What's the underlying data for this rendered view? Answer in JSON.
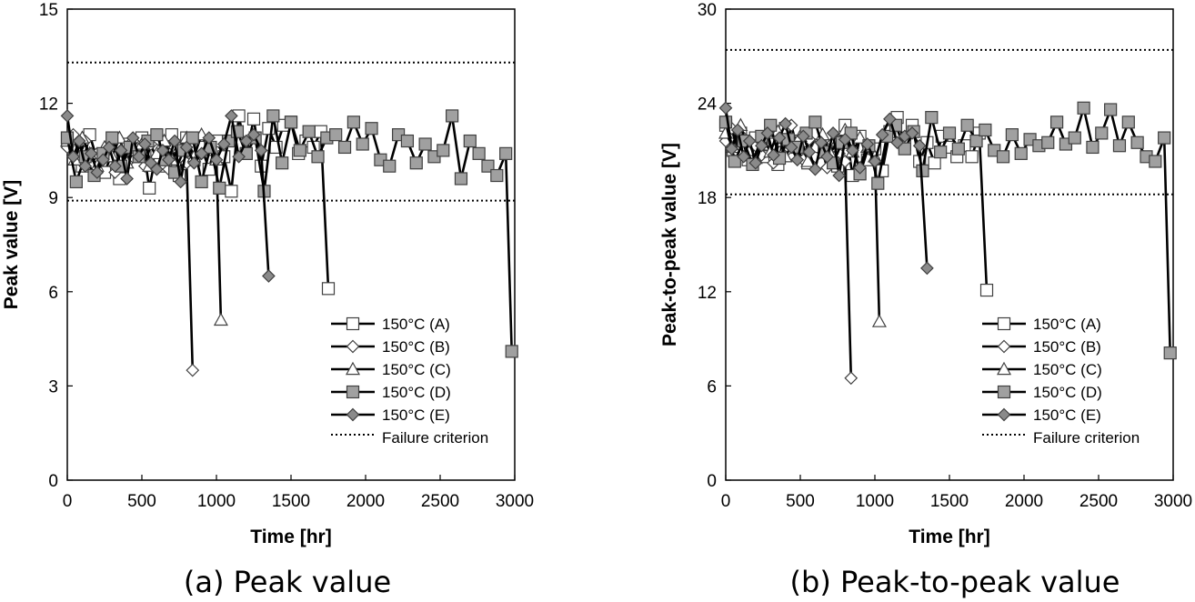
{
  "chart_data": [
    {
      "type": "line",
      "caption": "(a) Peak value",
      "xlabel": "Time [hr]",
      "ylabel": "Peak value [V]",
      "xlim": [
        0,
        3000
      ],
      "ylim": [
        0,
        15
      ],
      "xticks": [
        0,
        500,
        1000,
        1500,
        2000,
        2500,
        3000
      ],
      "yticks": [
        0,
        3,
        6,
        9,
        12,
        15
      ],
      "grid": false,
      "legend_position": "bottom-right",
      "failure_criterion": [
        13.3,
        8.9
      ],
      "legend": [
        "150°C (A)",
        "150°C (B)",
        "150°C (C)",
        "150°C (D)",
        "150°C (E)",
        "Failure criterion"
      ],
      "series": [
        {
          "name": "150°C (A)",
          "marker": "square-open",
          "x": [
            0,
            50,
            100,
            150,
            200,
            250,
            300,
            350,
            400,
            450,
            500,
            550,
            600,
            650,
            700,
            750,
            800,
            850,
            900,
            950,
            1000,
            1050,
            1100,
            1150,
            1200,
            1250,
            1300,
            1350,
            1400,
            1450,
            1500,
            1550,
            1600,
            1650,
            1700,
            1750
          ],
          "y": [
            10.9,
            10.5,
            10.0,
            11.0,
            10.2,
            9.8,
            10.4,
            9.6,
            10.7,
            10.3,
            10.9,
            9.3,
            10.5,
            10.0,
            11.0,
            9.7,
            10.9,
            10.2,
            10.6,
            9.9,
            10.8,
            10.3,
            9.2,
            11.6,
            10.4,
            11.5,
            10.0,
            11.2,
            10.6,
            11.3,
            11.4,
            10.4,
            10.8,
            10.6,
            11.1,
            6.1
          ]
        },
        {
          "name": "150°C (B)",
          "marker": "diamond-open",
          "x": [
            0,
            40,
            80,
            120,
            160,
            200,
            240,
            280,
            320,
            360,
            400,
            440,
            480,
            520,
            560,
            600,
            640,
            680,
            720,
            760,
            800,
            840
          ],
          "y": [
            10.6,
            11.0,
            10.3,
            10.8,
            10.0,
            10.4,
            10.2,
            10.6,
            9.8,
            10.5,
            10.1,
            10.8,
            10.3,
            10.0,
            10.7,
            10.2,
            10.5,
            9.9,
            10.6,
            10.3,
            10.1,
            3.5
          ]
        },
        {
          "name": "150°C (C)",
          "marker": "triangle-open",
          "x": [
            0,
            50,
            100,
            150,
            200,
            250,
            300,
            350,
            400,
            450,
            500,
            550,
            600,
            650,
            700,
            750,
            800,
            850,
            900,
            950,
            1000,
            1030
          ],
          "y": [
            10.8,
            10.2,
            10.9,
            10.4,
            10.0,
            10.6,
            10.3,
            10.9,
            10.1,
            10.5,
            10.7,
            10.0,
            10.4,
            10.8,
            10.2,
            10.6,
            10.9,
            10.3,
            11.0,
            10.5,
            10.2,
            5.1
          ]
        },
        {
          "name": "150°C (D)",
          "marker": "square-filled",
          "x": [
            0,
            60,
            120,
            180,
            240,
            300,
            360,
            420,
            480,
            540,
            600,
            660,
            720,
            780,
            840,
            900,
            960,
            1020,
            1080,
            1140,
            1200,
            1260,
            1320,
            1380,
            1440,
            1500,
            1560,
            1620,
            1680,
            1740,
            1800,
            1860,
            1920,
            1980,
            2040,
            2100,
            2160,
            2220,
            2280,
            2340,
            2400,
            2460,
            2520,
            2580,
            2640,
            2700,
            2760,
            2820,
            2880,
            2940,
            2980
          ],
          "y": [
            10.9,
            9.5,
            10.3,
            9.7,
            10.4,
            10.9,
            10.0,
            10.6,
            10.3,
            10.8,
            11.0,
            10.2,
            9.8,
            10.5,
            10.9,
            9.5,
            10.6,
            9.3,
            10.8,
            11.1,
            10.4,
            10.9,
            9.2,
            11.6,
            10.1,
            11.4,
            10.5,
            11.1,
            10.3,
            10.9,
            11.0,
            10.6,
            11.4,
            10.7,
            11.2,
            10.2,
            10.0,
            11.0,
            10.8,
            10.1,
            10.7,
            10.3,
            10.5,
            11.6,
            9.6,
            10.8,
            10.4,
            10.0,
            9.7,
            10.4,
            4.1
          ]
        },
        {
          "name": "150°C (E)",
          "marker": "diamond-filled",
          "x": [
            0,
            40,
            80,
            120,
            160,
            200,
            240,
            280,
            320,
            360,
            400,
            440,
            480,
            520,
            560,
            600,
            640,
            680,
            720,
            760,
            800,
            850,
            900,
            950,
            1000,
            1050,
            1100,
            1150,
            1200,
            1250,
            1300,
            1350
          ],
          "y": [
            11.6,
            10.3,
            10.8,
            10.0,
            10.4,
            9.8,
            10.2,
            10.6,
            10.0,
            10.5,
            9.6,
            10.9,
            10.3,
            10.7,
            10.1,
            9.9,
            10.5,
            10.2,
            10.8,
            9.5,
            10.6,
            10.1,
            10.4,
            10.9,
            10.2,
            10.7,
            11.6,
            10.3,
            10.8,
            11.0,
            10.5,
            6.5
          ]
        }
      ]
    },
    {
      "type": "line",
      "caption": "(b) Peak-to-peak value",
      "xlabel": "Time [hr]",
      "ylabel": "Peak-to-peak value [V]",
      "xlim": [
        0,
        3000
      ],
      "ylim": [
        0,
        30
      ],
      "xticks": [
        0,
        500,
        1000,
        1500,
        2000,
        2500,
        3000
      ],
      "yticks": [
        0,
        6,
        12,
        18,
        24,
        30
      ],
      "grid": false,
      "legend_position": "bottom-right",
      "failure_criterion": [
        27.4,
        18.2
      ],
      "legend": [
        "150°C (A)",
        "150°C (B)",
        "150°C (C)",
        "150°C (D)",
        "150°C (E)",
        "Failure criterion"
      ],
      "series": [
        {
          "name": "150°C (A)",
          "marker": "square-open",
          "x": [
            0,
            50,
            100,
            150,
            200,
            250,
            300,
            350,
            400,
            450,
            500,
            550,
            600,
            650,
            700,
            750,
            800,
            850,
            900,
            950,
            1000,
            1050,
            1100,
            1150,
            1200,
            1250,
            1300,
            1350,
            1400,
            1450,
            1500,
            1550,
            1600,
            1650,
            1700,
            1750
          ],
          "y": [
            22.6,
            21.0,
            22.1,
            20.4,
            21.8,
            20.6,
            21.4,
            20.1,
            22.4,
            20.8,
            21.6,
            20.2,
            22.1,
            20.9,
            21.3,
            20.0,
            22.6,
            19.4,
            21.9,
            20.4,
            21.1,
            19.7,
            22.2,
            23.1,
            21.4,
            22.6,
            20.3,
            21.5,
            20.2,
            21.9,
            21.2,
            20.6,
            21.3,
            20.6,
            22.1,
            12.1
          ]
        },
        {
          "name": "150°C (B)",
          "marker": "diamond-open",
          "x": [
            0,
            40,
            80,
            120,
            160,
            200,
            240,
            280,
            320,
            360,
            400,
            440,
            480,
            520,
            560,
            600,
            640,
            680,
            720,
            760,
            800,
            840
          ],
          "y": [
            21.6,
            22.4,
            20.9,
            21.8,
            20.5,
            21.3,
            20.7,
            22.1,
            20.2,
            21.6,
            20.9,
            22.6,
            21.1,
            20.4,
            21.7,
            20.6,
            21.2,
            19.9,
            21.5,
            20.8,
            20.3,
            6.5
          ]
        },
        {
          "name": "150°C (C)",
          "marker": "triangle-open",
          "x": [
            0,
            50,
            100,
            150,
            200,
            250,
            300,
            350,
            400,
            450,
            500,
            550,
            600,
            650,
            700,
            750,
            800,
            850,
            900,
            950,
            1000,
            1030
          ],
          "y": [
            22.1,
            21.2,
            22.6,
            21.0,
            20.5,
            21.8,
            20.9,
            22.2,
            20.6,
            21.5,
            21.9,
            20.3,
            21.2,
            22.0,
            20.8,
            21.6,
            22.3,
            20.9,
            21.8,
            21.2,
            20.6,
            10.1
          ]
        },
        {
          "name": "150°C (D)",
          "marker": "square-filled",
          "x": [
            0,
            60,
            120,
            180,
            240,
            300,
            360,
            420,
            480,
            540,
            600,
            660,
            720,
            780,
            840,
            900,
            960,
            1020,
            1080,
            1140,
            1200,
            1260,
            1320,
            1380,
            1440,
            1500,
            1560,
            1620,
            1680,
            1740,
            1800,
            1860,
            1920,
            1980,
            2040,
            2100,
            2160,
            2220,
            2280,
            2340,
            2400,
            2460,
            2520,
            2580,
            2640,
            2700,
            2760,
            2820,
            2880,
            2940,
            2980
          ],
          "y": [
            22.8,
            20.3,
            21.6,
            20.1,
            21.9,
            22.6,
            20.5,
            21.7,
            21.2,
            22.1,
            22.8,
            20.9,
            20.2,
            21.5,
            22.1,
            19.5,
            21.3,
            18.9,
            21.9,
            22.6,
            21.1,
            22.2,
            19.7,
            23.1,
            20.9,
            22.1,
            21.1,
            22.6,
            21.6,
            22.3,
            21.0,
            20.6,
            22.0,
            20.8,
            21.7,
            21.3,
            21.5,
            22.8,
            21.4,
            21.8,
            23.7,
            21.2,
            22.1,
            23.6,
            21.3,
            22.8,
            21.5,
            20.6,
            20.3,
            21.8,
            8.1
          ]
        },
        {
          "name": "150°C (E)",
          "marker": "diamond-filled",
          "x": [
            0,
            40,
            80,
            120,
            160,
            200,
            240,
            280,
            320,
            360,
            400,
            440,
            480,
            520,
            560,
            600,
            640,
            680,
            720,
            760,
            800,
            850,
            900,
            950,
            1000,
            1050,
            1100,
            1150,
            1200,
            1250,
            1300,
            1350
          ],
          "y": [
            23.7,
            21.1,
            22.3,
            20.6,
            21.6,
            20.2,
            21.3,
            22.1,
            20.7,
            21.8,
            22.7,
            21.2,
            20.4,
            21.9,
            20.9,
            19.8,
            21.5,
            20.6,
            22.1,
            19.4,
            21.7,
            21.0,
            19.9,
            21.4,
            20.3,
            22.0,
            23.0,
            21.5,
            21.9,
            22.1,
            21.3,
            13.5
          ]
        }
      ]
    }
  ]
}
